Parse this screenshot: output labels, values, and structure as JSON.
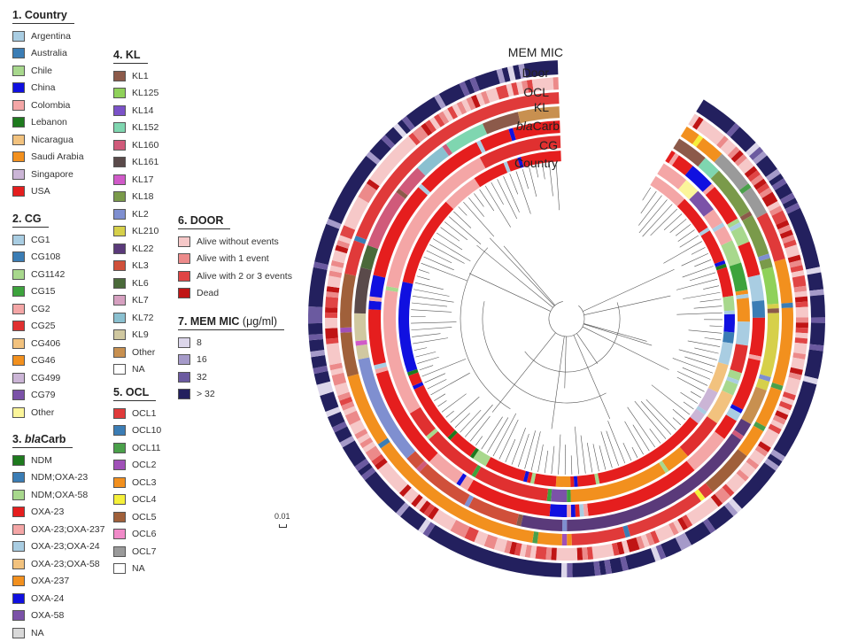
{
  "legends": {
    "country": {
      "title": "1. Country",
      "items": [
        {
          "label": "Argentina",
          "color": "#a9cde2"
        },
        {
          "label": "Australia",
          "color": "#3b7db5"
        },
        {
          "label": "Chile",
          "color": "#a8d88d"
        },
        {
          "label": "China",
          "color": "#1010e0"
        },
        {
          "label": "Colombia",
          "color": "#f4a6a6"
        },
        {
          "label": "Lebanon",
          "color": "#1e7a1e"
        },
        {
          "label": "Nicaragua",
          "color": "#f2c27e"
        },
        {
          "label": "Saudi Arabia",
          "color": "#f2901e"
        },
        {
          "label": "Singapore",
          "color": "#cbb5d6"
        },
        {
          "label": "USA",
          "color": "#e51e1e"
        }
      ]
    },
    "cg": {
      "title": "2. CG",
      "items": [
        {
          "label": "CG1",
          "color": "#a9cde2"
        },
        {
          "label": "CG108",
          "color": "#3b7db5"
        },
        {
          "label": "CG1142",
          "color": "#a8d88d"
        },
        {
          "label": "CG15",
          "color": "#3da33d"
        },
        {
          "label": "CG2",
          "color": "#f4a6a6"
        },
        {
          "label": "CG25",
          "color": "#e03030"
        },
        {
          "label": "CG406",
          "color": "#f2c27e"
        },
        {
          "label": "CG46",
          "color": "#f2901e"
        },
        {
          "label": "CG499",
          "color": "#cbb5d6"
        },
        {
          "label": "CG79",
          "color": "#7b52a8"
        },
        {
          "label": "Other",
          "color": "#fbf59a"
        }
      ]
    },
    "blacarb": {
      "title_italic": "bla",
      "title_prefix": "3. ",
      "title_suffix": "Carb",
      "items": [
        {
          "label": "NDM",
          "color": "#1e7a1e"
        },
        {
          "label": "NDM;OXA-23",
          "color": "#3b7db5"
        },
        {
          "label": "NDM;OXA-58",
          "color": "#a8d88d"
        },
        {
          "label": "OXA-23",
          "color": "#e51e1e"
        },
        {
          "label": "OXA-23;OXA-237",
          "color": "#f4a6a6"
        },
        {
          "label": "OXA-23;OXA-24",
          "color": "#a9cde2"
        },
        {
          "label": "OXA-23;OXA-58",
          "color": "#f2c27e"
        },
        {
          "label": "OXA-237",
          "color": "#f2901e"
        },
        {
          "label": "OXA-24",
          "color": "#1010e0"
        },
        {
          "label": "OXA-58",
          "color": "#7b52a8"
        },
        {
          "label": "NA",
          "color": "#d9d9d9"
        }
      ]
    },
    "kl": {
      "title": "4. KL",
      "items": [
        {
          "label": "KL1",
          "color": "#8c5a4a"
        },
        {
          "label": "KL125",
          "color": "#8fd15a"
        },
        {
          "label": "KL14",
          "color": "#7b52c8"
        },
        {
          "label": "KL152",
          "color": "#7fd6b0"
        },
        {
          "label": "KL160",
          "color": "#d05a7a"
        },
        {
          "label": "KL161",
          "color": "#5a4a4a"
        },
        {
          "label": "KL17",
          "color": "#d05ac8"
        },
        {
          "label": "KL18",
          "color": "#7a9a4a"
        },
        {
          "label": "KL2",
          "color": "#7f8fd0"
        },
        {
          "label": "KL210",
          "color": "#d6d04a"
        },
        {
          "label": "KL22",
          "color": "#5a3a7a"
        },
        {
          "label": "KL3",
          "color": "#d0503a"
        },
        {
          "label": "KL6",
          "color": "#4a6a3a"
        },
        {
          "label": "KL7",
          "color": "#d6a0c0"
        },
        {
          "label": "KL72",
          "color": "#8ac0d0"
        },
        {
          "label": "KL9",
          "color": "#d0c8a0"
        },
        {
          "label": "Other",
          "color": "#c89050"
        },
        {
          "label": "NA",
          "color": "#ffffff"
        }
      ]
    },
    "ocl": {
      "title": "5. OCL",
      "items": [
        {
          "label": "OCL1",
          "color": "#e03a3a"
        },
        {
          "label": "OCL10",
          "color": "#3b7db5"
        },
        {
          "label": "OCL11",
          "color": "#4aa04a"
        },
        {
          "label": "OCL2",
          "color": "#a050b8"
        },
        {
          "label": "OCL3",
          "color": "#f2901e"
        },
        {
          "label": "OCL4",
          "color": "#f5f03a"
        },
        {
          "label": "OCL5",
          "color": "#a0603a"
        },
        {
          "label": "OCL6",
          "color": "#f08ac8"
        },
        {
          "label": "OCL7",
          "color": "#9a9a9a"
        },
        {
          "label": "NA",
          "color": "#ffffff"
        }
      ]
    },
    "door": {
      "title": "6. DOOR",
      "items": [
        {
          "label": "Alive without events",
          "color": "#f6c8c8"
        },
        {
          "label": "Alive with 1 event",
          "color": "#ec8a8a"
        },
        {
          "label": "Alive with 2 or 3 events",
          "color": "#e04545"
        },
        {
          "label": "Dead",
          "color": "#c01515"
        }
      ]
    },
    "mic": {
      "title": "7. MEM MIC",
      "title_unit": " (μg/ml)",
      "items": [
        {
          "label": "8",
          "color": "#dcd6ea"
        },
        {
          "label": "16",
          "color": "#a59ac9"
        },
        {
          "label": "32",
          "color": "#6b5aa0"
        },
        {
          "label": "> 32",
          "color": "#23205e"
        }
      ]
    }
  },
  "ring_labels": {
    "mic": "MEM MIC",
    "door": "Door",
    "ocl": "OCL",
    "kl": "KL",
    "bla_italic": "bla",
    "bla_rest": "Carb",
    "cg": "CG",
    "country": "Country"
  },
  "scale_bar": "0.01"
}
